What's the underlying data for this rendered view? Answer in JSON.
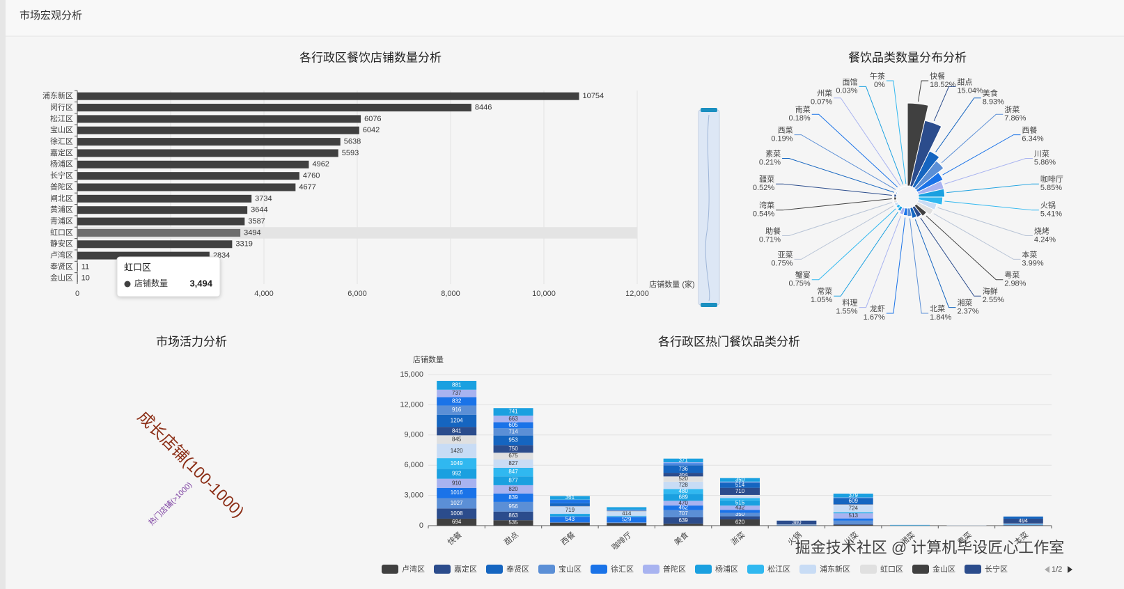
{
  "header": {
    "title": "市场宏观分析"
  },
  "watermark": "掘金技术社区 @ 计算机毕设匠心工作室",
  "chart_data": [
    {
      "type": "bar",
      "orientation": "horizontal",
      "title": "各行政区餐饮店铺数量分析",
      "categories": [
        "浦东新区",
        "闵行区",
        "松江区",
        "宝山区",
        "徐汇区",
        "嘉定区",
        "杨浦区",
        "长宁区",
        "普陀区",
        "闸北区",
        "黄浦区",
        "青浦区",
        "虹口区",
        "静安区",
        "卢湾区",
        "奉贤区",
        "金山区"
      ],
      "values": [
        10754,
        8446,
        6076,
        6042,
        5638,
        5593,
        4962,
        4760,
        4677,
        3734,
        3644,
        3587,
        3494,
        3319,
        2834,
        11,
        10
      ],
      "color": "#404040",
      "xlabel": "店铺数量 (家)",
      "xlim": [
        0,
        12000
      ],
      "xticks": [
        0,
        {
          "value": 2000,
          "label": "2,000"
        },
        {
          "value": 4000,
          "label": "4,000"
        },
        {
          "value": 6000,
          "label": "6,000"
        },
        {
          "value": 8000,
          "label": "8,000"
        },
        {
          "value": 10000,
          "label": "10,000"
        },
        {
          "value": 12000,
          "label": "12,000"
        }
      ],
      "grid": true,
      "tooltip": {
        "category": "虹口区",
        "series": "店铺数量",
        "value": {
          "value": 3494,
          "label": "3,494"
        }
      }
    },
    {
      "type": "pie",
      "rose": true,
      "title": "餐饮品类数量分布分析",
      "categories": [
        "快餐",
        "甜点",
        "美食",
        "浙菜",
        "西餐",
        "川菜",
        "咖啡厅",
        "火锅",
        "烧烤",
        "本菜",
        "粤菜",
        "海鲜",
        "湘菜",
        "北菜",
        "龙虾",
        "料理",
        "常菜",
        "蟹宴",
        "亚菜",
        "助餐",
        "湾菜",
        "疆菜",
        "素菜",
        "西菜",
        "南菜",
        "州菜",
        "面馆",
        "午茶"
      ],
      "values": [
        18.52,
        15.04,
        8.93,
        7.86,
        6.34,
        5.86,
        5.85,
        5.41,
        4.24,
        3.99,
        2.98,
        2.55,
        2.37,
        1.84,
        1.67,
        1.55,
        1.05,
        0.75,
        0.75,
        0.71,
        0.54,
        0.52,
        0.21,
        0.19,
        0.18,
        0.07,
        0.03,
        0
      ],
      "value_labels": [
        "18.52%",
        "15.04%",
        "8.93%",
        "7.86%",
        "6.34%",
        "5.86%",
        "5.85%",
        "5.41%",
        "4.24%",
        "3.99%",
        "2.98%",
        "2.55%",
        "2.37%",
        "1.84%",
        "1.67%",
        "1.55%",
        "1.05%",
        "0.75%",
        "0.75%",
        "0.71%",
        "0.54%",
        "0.52%",
        "0.21%",
        "0.19%",
        "0.18%",
        "0.07%",
        "0.03%",
        "0%"
      ],
      "colors": [
        "#404040",
        "#2b4c8c",
        "#1565c0",
        "#5b8fd6",
        "#1a73e8",
        "#a8b3f0",
        "#1aa0e0",
        "#30b8f0",
        "#c8dcf5",
        "#e0e0e0"
      ]
    },
    {
      "type": "wordcloud",
      "title": "市场活力分析",
      "words": [
        {
          "text": "成长店铺(100-1000)",
          "color": "#8b2e16"
        },
        {
          "text": "热门店铺(>1000)",
          "color": "#7b3fa0"
        }
      ]
    },
    {
      "type": "bar",
      "stacked": true,
      "title": "各行政区热门餐饮品类分析",
      "ylabel": "店铺数量",
      "categories": [
        "快餐",
        "甜点",
        "西餐",
        "咖啡厅",
        "美食",
        "浙菜",
        "火锅",
        "川菜",
        "湘菜",
        "粤菜",
        "本菜"
      ],
      "ylim": [
        0,
        15000
      ],
      "yticks": [
        0,
        {
          "value": 3000,
          "label": "3,000"
        },
        {
          "value": 6000,
          "label": "6,000"
        },
        {
          "value": 9000,
          "label": "9,000"
        },
        {
          "value": 12000,
          "label": "12,000"
        },
        {
          "value": 15000,
          "label": "15,000"
        }
      ],
      "grid": true,
      "legend_page": "1/2",
      "series": [
        {
          "name": "卢湾区",
          "color": "#404040",
          "values": [
            694,
            535,
            287,
            254,
            188,
            620,
            20,
            80,
            0,
            0,
            30
          ]
        },
        {
          "name": "嘉定区",
          "color": "#2b4c8c",
          "values": [
            1008,
            863,
            30,
            30,
            639,
            308,
            10,
            80,
            0,
            0,
            20
          ]
        },
        {
          "name": "奉贤区",
          "color": "#1565c0",
          "values": [
            3,
            2,
            1,
            1,
            1,
            1,
            0,
            0,
            0,
            0,
            0
          ]
        },
        {
          "name": "宝山区",
          "color": "#5b8fd6",
          "values": [
            1027,
            956,
            30,
            40,
            707,
            350,
            10,
            333,
            0,
            0,
            20
          ]
        },
        {
          "name": "徐汇区",
          "color": "#1a73e8",
          "values": [
            1016,
            839,
            543,
            529,
            462,
            280,
            10,
            222,
            10,
            0,
            20
          ]
        },
        {
          "name": "普陀区",
          "color": "#a8b3f0",
          "values": [
            910,
            820,
            25,
            40,
            470,
            432,
            10,
            513,
            0,
            0,
            10
          ]
        },
        {
          "name": "杨浦区",
          "color": "#1aa0e0",
          "values": [
            992,
            877,
            229,
            50,
            689,
            515,
            10,
            50,
            20,
            0,
            20
          ]
        },
        {
          "name": "松江区",
          "color": "#30b8f0",
          "values": [
            1049,
            847,
            30,
            40,
            480,
            240,
            10,
            50,
            30,
            0,
            20
          ]
        },
        {
          "name": "浦东新区",
          "color": "#c8dcf5",
          "values": [
            1420,
            827,
            719,
            414,
            728,
            200,
            20,
            724,
            40,
            30,
            40
          ]
        },
        {
          "name": "虹口区",
          "color": "#e0e0e0",
          "values": [
            845,
            675,
            25,
            40,
            520,
            100,
            10,
            40,
            0,
            20,
            20
          ]
        },
        {
          "name": "金山区",
          "color": "#404040",
          "values": [
            2,
            1,
            1,
            1,
            1,
            1,
            0,
            0,
            0,
            0,
            0
          ]
        },
        {
          "name": "长宁区",
          "color": "#2b4c8c",
          "values": [
            841,
            750,
            25,
            30,
            364,
            710,
            380,
            40,
            0,
            0,
            494
          ]
        },
        {
          "color": "#1565c0",
          "values": [
            1204,
            953,
            269,
            30,
            736,
            514,
            10,
            609,
            0,
            0,
            210
          ]
        },
        {
          "color": "#5b8fd6",
          "values": [
            916,
            714,
            25,
            30,
            100,
            40,
            0,
            20,
            0,
            0,
            0
          ]
        },
        {
          "color": "#1a73e8",
          "values": [
            832,
            605,
            316,
            30,
            100,
            30,
            0,
            20,
            0,
            0,
            0
          ]
        },
        {
          "color": "#a8b3f0",
          "values": [
            737,
            663,
            25,
            30,
            100,
            30,
            0,
            20,
            0,
            0,
            0
          ]
        },
        {
          "color": "#1aa0e0",
          "values": [
            881,
            741,
            361,
            245,
            371,
            350,
            0,
            379,
            0,
            0,
            0
          ]
        }
      ]
    }
  ]
}
